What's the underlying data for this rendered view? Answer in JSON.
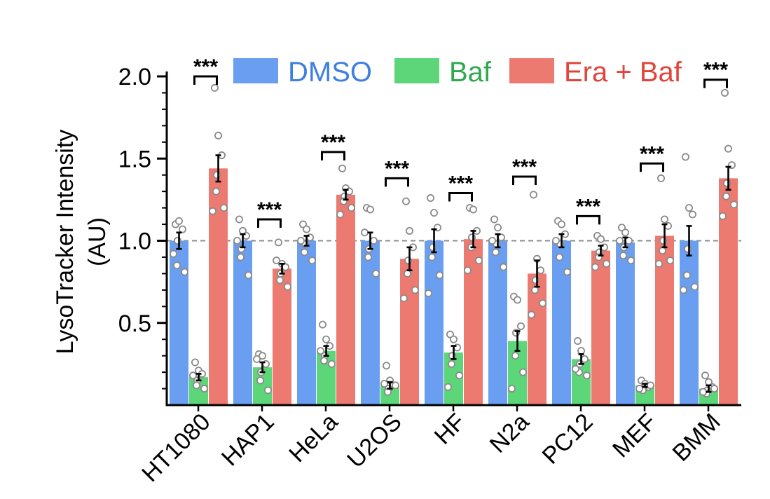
{
  "chart_data": {
    "type": "bar",
    "title": "",
    "xlabel": "",
    "ylabel_line1": "LysoTracker Intensity",
    "ylabel_line2": "(AU)",
    "ylim": [
      0.0,
      2.0
    ],
    "yticks": [
      0.5,
      1.0,
      1.5,
      2.0
    ],
    "ytick_labels": [
      "0.5",
      "1.0",
      "1.5",
      "2.0"
    ],
    "reference_line": 1.0,
    "categories": [
      "HT1080",
      "HAP1",
      "HeLa",
      "U2OS",
      "HF",
      "N2a",
      "PC12",
      "MEF",
      "BMM"
    ],
    "series": [
      {
        "name": "DMSO",
        "color": "#6a9ef0",
        "label_color": "#3f7fe0",
        "values": [
          1.0,
          1.0,
          1.0,
          1.0,
          1.0,
          1.0,
          1.0,
          0.99,
          1.0
        ],
        "errors": [
          0.05,
          0.04,
          0.03,
          0.05,
          0.07,
          0.04,
          0.04,
          0.03,
          0.09
        ],
        "points": [
          [
            1.1,
            1.12,
            1.07,
            1.0,
            0.85,
            0.81,
            0.92
          ],
          [
            1.13,
            1.06,
            1.03,
            0.95,
            0.9,
            0.79,
            1.0
          ],
          [
            1.1,
            1.07,
            1.02,
            0.98,
            0.93,
            0.88,
            1.0
          ],
          [
            1.2,
            1.19,
            1.0,
            0.95,
            0.9,
            0.8,
            1.05
          ],
          [
            1.26,
            1.17,
            1.08,
            0.96,
            0.9,
            0.79,
            0.68
          ],
          [
            1.13,
            1.08,
            1.02,
            0.98,
            0.93,
            0.84,
            1.0
          ],
          [
            1.12,
            1.1,
            1.04,
            0.98,
            0.9,
            0.81,
            1.0
          ],
          [
            1.08,
            1.05,
            1.0,
            0.96,
            0.91,
            0.88,
            1.0
          ],
          [
            1.51,
            1.2,
            1.16,
            0.95,
            0.79,
            0.72,
            0.7
          ]
        ]
      },
      {
        "name": "Baf",
        "color": "#5cd678",
        "label_color": "#2fa84f",
        "values": [
          0.17,
          0.23,
          0.33,
          0.12,
          0.32,
          0.39,
          0.28,
          0.12,
          0.1
        ],
        "errors": [
          0.02,
          0.03,
          0.03,
          0.02,
          0.04,
          0.06,
          0.03,
          0.01,
          0.02
        ],
        "points": [
          [
            0.26,
            0.21,
            0.19,
            0.15,
            0.12,
            0.1,
            0.18
          ],
          [
            0.31,
            0.3,
            0.25,
            0.2,
            0.15,
            0.09,
            0.28
          ],
          [
            0.49,
            0.4,
            0.36,
            0.3,
            0.27,
            0.25,
            0.33
          ],
          [
            0.24,
            0.15,
            0.12,
            0.1,
            0.08,
            0.12,
            0.13
          ],
          [
            0.43,
            0.4,
            0.35,
            0.3,
            0.25,
            0.18,
            0.11
          ],
          [
            0.66,
            0.64,
            0.48,
            0.44,
            0.3,
            0.2,
            0.1
          ],
          [
            0.39,
            0.33,
            0.28,
            0.25,
            0.2,
            0.18,
            0.22
          ],
          [
            0.15,
            0.13,
            0.11,
            0.1,
            0.09,
            0.12,
            0.1
          ],
          [
            0.18,
            0.14,
            0.11,
            0.09,
            0.07,
            0.1,
            0.08
          ]
        ]
      },
      {
        "name": "Era + Baf",
        "color": "#ec7a70",
        "label_color": "#e0453c",
        "values": [
          1.44,
          0.83,
          1.28,
          0.89,
          1.01,
          0.8,
          0.94,
          1.03,
          1.38
        ],
        "errors": [
          0.08,
          0.03,
          0.03,
          0.07,
          0.05,
          0.08,
          0.03,
          0.07,
          0.07
        ],
        "points": [
          [
            1.93,
            1.64,
            1.52,
            1.4,
            1.3,
            1.2,
            1.18
          ],
          [
            0.99,
            0.86,
            0.84,
            0.8,
            0.76,
            0.72,
            0.88
          ],
          [
            1.44,
            1.32,
            1.3,
            1.27,
            1.24,
            1.2,
            1.16
          ],
          [
            1.24,
            1.06,
            0.96,
            0.88,
            0.8,
            0.7,
            0.65
          ],
          [
            1.2,
            1.19,
            1.06,
            1.02,
            0.96,
            0.88,
            0.82
          ],
          [
            1.28,
            0.89,
            0.82,
            0.76,
            0.7,
            0.62,
            0.55
          ],
          [
            1.03,
            1.01,
            0.96,
            0.93,
            0.9,
            0.86,
            0.84
          ],
          [
            1.38,
            1.13,
            1.09,
            1.0,
            0.94,
            0.88,
            0.86
          ],
          [
            1.9,
            1.56,
            1.46,
            1.35,
            1.27,
            1.22,
            1.15
          ]
        ]
      }
    ],
    "significance": [
      {
        "category_index": 0,
        "label": "***",
        "level": 2.0
      },
      {
        "category_index": 1,
        "label": "***",
        "level": 1.13
      },
      {
        "category_index": 2,
        "label": "***",
        "level": 1.54
      },
      {
        "category_index": 3,
        "label": "***",
        "level": 1.38
      },
      {
        "category_index": 4,
        "label": "***",
        "level": 1.29
      },
      {
        "category_index": 5,
        "label": "***",
        "level": 1.39
      },
      {
        "category_index": 6,
        "label": "***",
        "level": 1.15
      },
      {
        "category_index": 7,
        "label": "***",
        "level": 1.47
      },
      {
        "category_index": 8,
        "label": "***",
        "level": 1.98
      }
    ],
    "legend": {
      "placement": "top",
      "entries": [
        "DMSO",
        "Baf",
        "Era + Baf"
      ]
    }
  }
}
